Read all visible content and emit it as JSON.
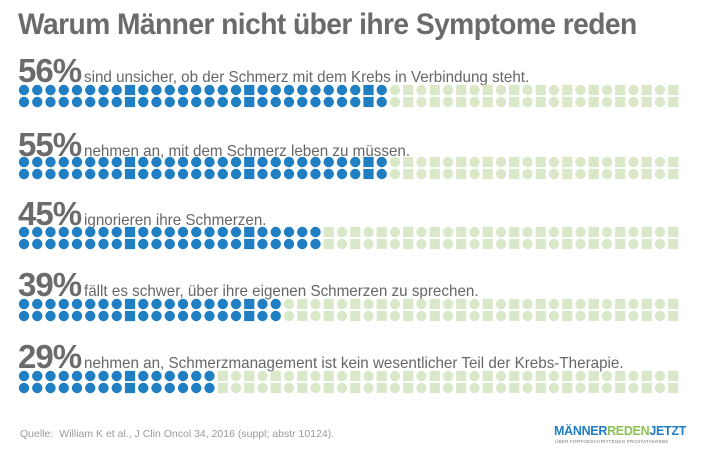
{
  "title": "Warum Männer nicht über ihre Symptome reden",
  "chart_data": {
    "type": "bar",
    "title": "Warum Männer nicht über ihre Symptome reden",
    "categories": [
      "sind unsicher, ob der Schmerz mit dem Krebs in Verbindung steht.",
      "nehmen an, mit dem Schmerz leben zu müssen.",
      "ignorieren ihre Schmerzen.",
      "fällt es schwer, über ihre eigenen Schmerzen zu sprechen.",
      "nehmen an, Schmerzmanagement ist kein wesentlicher Teil der Krebs-Therapie."
    ],
    "values": [
      56,
      55,
      45,
      39,
      29
    ],
    "value_labels": [
      "56%",
      "55%",
      "45%",
      "39%",
      "29%"
    ],
    "ylim": [
      0,
      100
    ],
    "colors": {
      "filled": "#1f7fc2",
      "empty": "#d9e8c8"
    }
  },
  "source": {
    "label": "Quelle:",
    "text": "William K et al., J Clin Oncol 34, 2016 (suppl; abstr 10124)."
  },
  "logo": {
    "part1": "MÄNNER",
    "part2": "REDEN",
    "part3": "JETZT",
    "tagline": "ÜBER FORTGESCHRITTENEN PROSTATAKREBS"
  }
}
